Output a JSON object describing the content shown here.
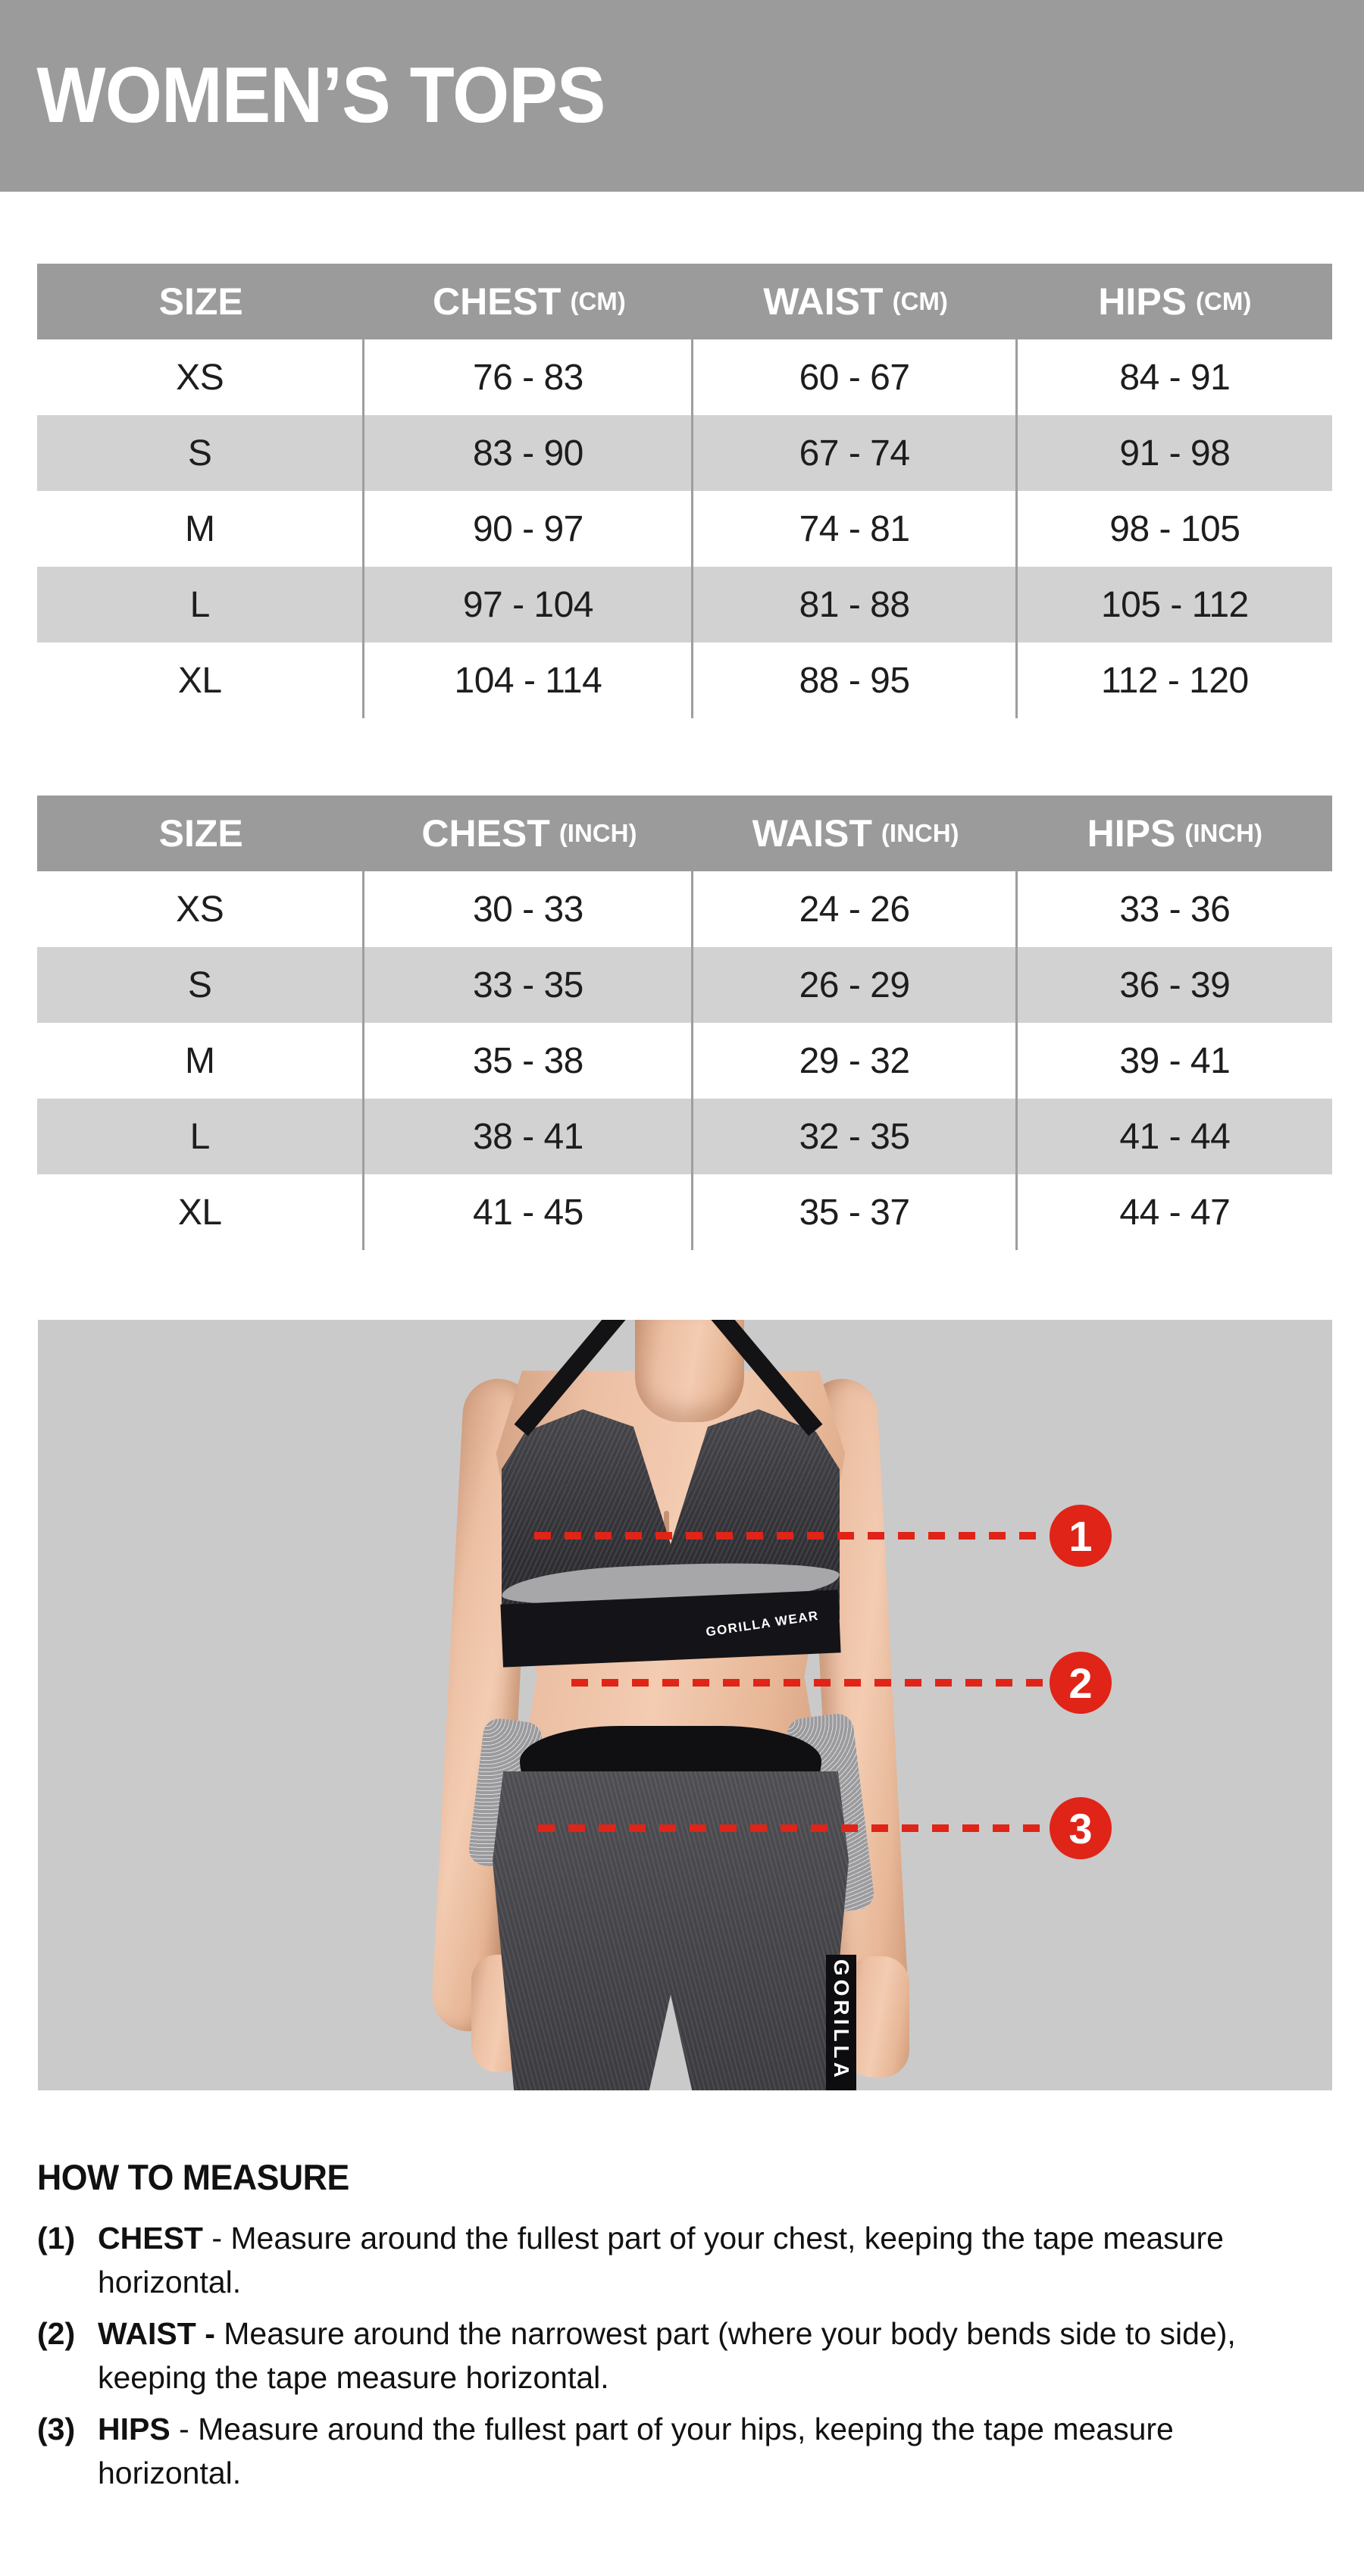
{
  "banner": {
    "title": "WOMEN’S TOPS"
  },
  "size_tables": [
    {
      "unit": "(CM)",
      "columns": {
        "size": "SIZE",
        "chest": "CHEST",
        "waist": "WAIST",
        "hips": "HIPS"
      },
      "rows": [
        {
          "size": "XS",
          "chest": "76 - 83",
          "waist": "60 - 67",
          "hips": "84 - 91"
        },
        {
          "size": "S",
          "chest": "83 - 90",
          "waist": "67 - 74",
          "hips": "91 - 98"
        },
        {
          "size": "M",
          "chest": "90 - 97",
          "waist": "74 - 81",
          "hips": "98 - 105"
        },
        {
          "size": "L",
          "chest": "97 - 104",
          "waist": "81 - 88",
          "hips": "105 - 112"
        },
        {
          "size": "XL",
          "chest": "104 - 114",
          "waist": "88 - 95",
          "hips": "112 - 120"
        }
      ]
    },
    {
      "unit": "(INCH)",
      "columns": {
        "size": "SIZE",
        "chest": "CHEST",
        "waist": "WAIST",
        "hips": "HIPS"
      },
      "rows": [
        {
          "size": "XS",
          "chest": "30 - 33",
          "waist": "24 - 26",
          "hips": "33 - 36"
        },
        {
          "size": "S",
          "chest": "33 - 35",
          "waist": "26 - 29",
          "hips": "36 - 39"
        },
        {
          "size": "M",
          "chest": "35 - 38",
          "waist": "29 - 32",
          "hips": "39 - 41"
        },
        {
          "size": "L",
          "chest": "38 - 41",
          "waist": "32 - 35",
          "hips": "41 - 44"
        },
        {
          "size": "XL",
          "chest": "41 - 45",
          "waist": "35 - 37",
          "hips": "44 - 47"
        }
      ]
    }
  ],
  "figure": {
    "bra_brand_text": "GORILLA WEAR",
    "leg_brand_text": "GORILLA",
    "markers": [
      {
        "number": "1"
      },
      {
        "number": "2"
      },
      {
        "number": "3"
      }
    ]
  },
  "how_to_measure": {
    "title": "HOW TO MEASURE",
    "items": [
      {
        "marker": "(1)",
        "label": "CHEST",
        "separator": " - ",
        "text": "Measure around the fullest part of your chest, keeping the tape measure horizontal."
      },
      {
        "marker": "(2)",
        "label": "WAIST -",
        "separator": " ",
        "text": "Measure around the narrowest part (where your body bends side to side), keeping the tape measure horizontal."
      },
      {
        "marker": "(3)",
        "label": "HIPS",
        "separator": " - ",
        "text": "Measure around the fullest part of your hips, keeping the tape measure horizontal."
      }
    ]
  },
  "colors": {
    "banner_gray": "#9b9b9b",
    "table_header_gray": "#9b9b9b",
    "row_alt_gray": "#d2d2d2",
    "photo_background_gray": "#cacaca",
    "accent_red": "#e02418",
    "text_black": "#1d1d1d"
  }
}
